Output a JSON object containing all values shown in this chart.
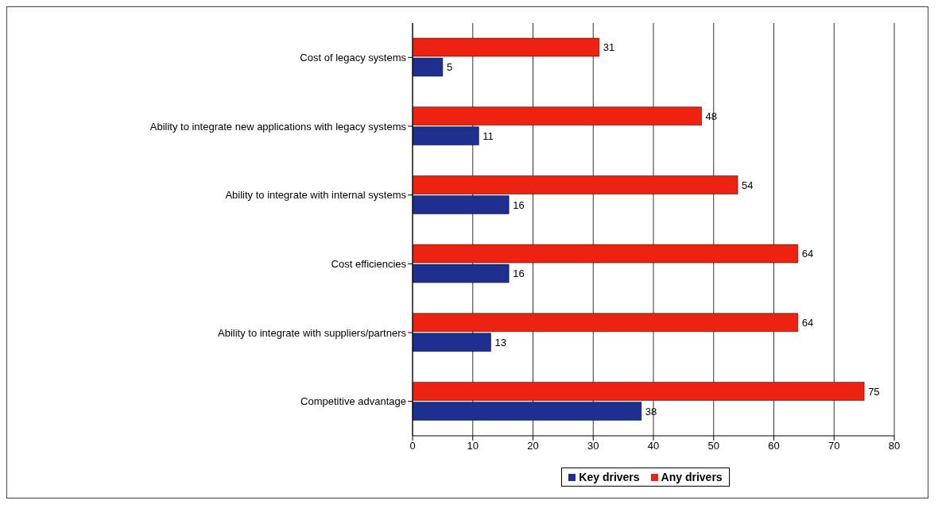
{
  "chart_data": {
    "type": "bar",
    "orientation": "horizontal",
    "categories": [
      "Cost of legacy systems",
      "Ability to integrate new applications with legacy systems",
      "Ability to integrate with internal systems",
      "Cost efficiencies",
      "Ability to integrate with suppliers/partners",
      "Competitive advantage"
    ],
    "series": [
      {
        "name": "Key drivers",
        "color": "#1f2f8f",
        "values": [
          5,
          11,
          16,
          16,
          13,
          38
        ]
      },
      {
        "name": "Any drivers",
        "color": "#ee2211",
        "values": [
          31,
          48,
          54,
          64,
          64,
          75
        ]
      }
    ],
    "xlim": [
      0,
      80
    ],
    "xticks": [
      0,
      10,
      20,
      30,
      40,
      50,
      60,
      70,
      80
    ],
    "grid": "x",
    "data_labels": true,
    "legend": "bottom"
  }
}
